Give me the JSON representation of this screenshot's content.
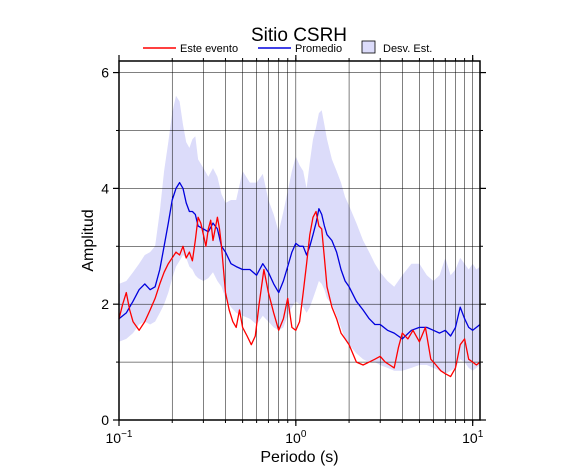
{
  "chart_data": {
    "type": "line",
    "title": "Sitio CSRH",
    "xlabel": "Periodo (s)",
    "ylabel": "Amplitud",
    "xscale": "log",
    "xlim": [
      0.1,
      11
    ],
    "ylim": [
      0,
      6.2
    ],
    "x_ticks": [
      {
        "value": 0.1,
        "base": "10",
        "exp": "−1"
      },
      {
        "value": 1,
        "base": "10",
        "exp": "0"
      },
      {
        "value": 10,
        "base": "10",
        "exp": "1"
      }
    ],
    "x_tick_labels_plain": [
      "10⁻¹",
      "10⁰",
      "10¹"
    ],
    "y_ticks": [
      0,
      2,
      4,
      6
    ],
    "y_ticks_minor": [
      1,
      3,
      5
    ],
    "grid": true,
    "legend": {
      "placement": "top",
      "entries": [
        {
          "label": "Este evento",
          "color": "#ff0000",
          "kind": "line"
        },
        {
          "label": "Promedio",
          "color": "#0000dd",
          "kind": "line"
        },
        {
          "label": "Desv. Est.",
          "color": "#dcdcfa",
          "kind": "band"
        }
      ]
    },
    "series": [
      {
        "name": "Este evento",
        "color": "#ff0000",
        "x": [
          0.1,
          0.105,
          0.11,
          0.115,
          0.12,
          0.13,
          0.14,
          0.15,
          0.16,
          0.17,
          0.18,
          0.19,
          0.2,
          0.21,
          0.22,
          0.23,
          0.24,
          0.25,
          0.26,
          0.27,
          0.28,
          0.29,
          0.3,
          0.31,
          0.32,
          0.33,
          0.34,
          0.35,
          0.36,
          0.37,
          0.38,
          0.39,
          0.4,
          0.42,
          0.44,
          0.46,
          0.48,
          0.5,
          0.53,
          0.56,
          0.59,
          0.62,
          0.66,
          0.7,
          0.75,
          0.8,
          0.85,
          0.9,
          0.95,
          1.0,
          1.05,
          1.1,
          1.15,
          1.2,
          1.25,
          1.3,
          1.35,
          1.4,
          1.45,
          1.5,
          1.6,
          1.7,
          1.8,
          1.9,
          2.0,
          2.2,
          2.4,
          2.6,
          2.8,
          3.0,
          3.2,
          3.4,
          3.6,
          3.8,
          4.0,
          4.3,
          4.6,
          5.0,
          5.4,
          5.8,
          6.2,
          6.6,
          7.0,
          7.5,
          8.0,
          8.5,
          9.0,
          9.5,
          10.0,
          10.5,
          11.0
        ],
        "y": [
          1.75,
          2.0,
          2.2,
          1.9,
          1.7,
          1.55,
          1.7,
          1.9,
          2.1,
          2.35,
          2.55,
          2.7,
          2.8,
          2.9,
          2.85,
          3.0,
          2.8,
          2.9,
          2.75,
          3.1,
          3.5,
          3.4,
          3.2,
          3.0,
          3.3,
          3.45,
          3.1,
          3.3,
          3.5,
          3.3,
          3.0,
          2.6,
          2.2,
          1.9,
          1.7,
          1.6,
          1.9,
          1.6,
          1.45,
          1.3,
          1.45,
          2.0,
          2.6,
          2.2,
          1.85,
          1.55,
          1.75,
          2.1,
          1.6,
          1.55,
          1.7,
          2.2,
          2.7,
          3.2,
          3.5,
          3.6,
          3.35,
          3.3,
          2.8,
          2.3,
          1.95,
          1.75,
          1.5,
          1.4,
          1.3,
          1.0,
          0.95,
          1.0,
          1.05,
          1.1,
          1.0,
          0.95,
          0.9,
          1.25,
          1.5,
          1.4,
          1.55,
          1.35,
          1.6,
          1.05,
          0.95,
          0.85,
          0.8,
          0.75,
          0.9,
          1.3,
          1.4,
          1.05,
          1.0,
          0.95,
          1.0
        ]
      },
      {
        "name": "Promedio",
        "color": "#0000dd",
        "x": [
          0.1,
          0.11,
          0.12,
          0.13,
          0.14,
          0.15,
          0.16,
          0.17,
          0.18,
          0.19,
          0.2,
          0.21,
          0.22,
          0.23,
          0.24,
          0.25,
          0.26,
          0.27,
          0.28,
          0.3,
          0.32,
          0.34,
          0.36,
          0.38,
          0.4,
          0.43,
          0.46,
          0.5,
          0.55,
          0.6,
          0.65,
          0.7,
          0.75,
          0.8,
          0.85,
          0.9,
          0.95,
          1.0,
          1.05,
          1.1,
          1.15,
          1.2,
          1.25,
          1.3,
          1.35,
          1.4,
          1.45,
          1.5,
          1.6,
          1.7,
          1.8,
          1.9,
          2.0,
          2.2,
          2.4,
          2.6,
          2.8,
          3.0,
          3.3,
          3.6,
          4.0,
          4.5,
          5.0,
          5.5,
          6.0,
          6.5,
          7.0,
          7.5,
          8.0,
          8.5,
          9.0,
          9.5,
          10.0,
          10.5,
          11.0
        ],
        "y": [
          1.75,
          1.85,
          2.05,
          2.25,
          2.35,
          2.25,
          2.3,
          2.6,
          3.0,
          3.4,
          3.8,
          4.0,
          4.1,
          4.0,
          3.75,
          3.6,
          3.6,
          3.55,
          3.35,
          3.3,
          3.25,
          3.4,
          3.3,
          3.0,
          2.9,
          2.7,
          2.65,
          2.6,
          2.6,
          2.5,
          2.7,
          2.55,
          2.35,
          2.2,
          2.4,
          2.65,
          2.9,
          3.05,
          3.0,
          3.0,
          2.85,
          3.0,
          3.2,
          3.4,
          3.65,
          3.55,
          3.35,
          3.2,
          3.1,
          2.9,
          2.6,
          2.4,
          2.3,
          2.05,
          1.9,
          1.75,
          1.65,
          1.65,
          1.55,
          1.5,
          1.4,
          1.55,
          1.6,
          1.6,
          1.55,
          1.5,
          1.55,
          1.45,
          1.6,
          1.95,
          1.75,
          1.6,
          1.55,
          1.6,
          1.65
        ]
      }
    ],
    "band": {
      "name": "Desv. Est.",
      "color": "#dcdcfa",
      "x": [
        0.1,
        0.11,
        0.12,
        0.13,
        0.14,
        0.15,
        0.16,
        0.17,
        0.18,
        0.19,
        0.2,
        0.21,
        0.22,
        0.23,
        0.24,
        0.25,
        0.26,
        0.27,
        0.28,
        0.3,
        0.32,
        0.34,
        0.36,
        0.38,
        0.4,
        0.43,
        0.46,
        0.5,
        0.55,
        0.6,
        0.65,
        0.7,
        0.75,
        0.8,
        0.85,
        0.9,
        0.95,
        1.0,
        1.05,
        1.1,
        1.15,
        1.2,
        1.25,
        1.3,
        1.35,
        1.4,
        1.45,
        1.5,
        1.6,
        1.7,
        1.8,
        1.9,
        2.0,
        2.2,
        2.4,
        2.6,
        2.8,
        3.0,
        3.3,
        3.6,
        4.0,
        4.5,
        5.0,
        5.5,
        6.0,
        6.5,
        7.0,
        7.5,
        8.0,
        8.5,
        9.0,
        9.5,
        10.0,
        10.5,
        11.0
      ],
      "upper": [
        2.35,
        2.4,
        2.55,
        2.7,
        2.85,
        2.9,
        3.0,
        3.6,
        4.3,
        4.8,
        5.3,
        5.6,
        5.5,
        5.1,
        4.8,
        4.7,
        4.85,
        4.9,
        4.5,
        4.35,
        4.2,
        4.35,
        4.2,
        3.9,
        3.75,
        3.8,
        3.8,
        4.3,
        4.1,
        4.1,
        4.25,
        3.8,
        3.55,
        3.25,
        3.6,
        3.95,
        4.3,
        4.55,
        4.4,
        4.3,
        4.0,
        4.45,
        4.85,
        5.05,
        5.3,
        5.35,
        5.1,
        4.85,
        4.5,
        4.3,
        4.1,
        3.85,
        3.7,
        3.4,
        3.1,
        2.9,
        2.7,
        2.55,
        2.4,
        2.3,
        2.5,
        2.7,
        2.7,
        2.5,
        2.4,
        2.5,
        2.8,
        2.5,
        2.6,
        2.8,
        2.7,
        2.6,
        2.7,
        2.6,
        2.65
      ],
      "lower": [
        1.35,
        1.4,
        1.5,
        1.65,
        1.7,
        1.65,
        1.7,
        1.85,
        2.0,
        2.2,
        2.45,
        2.65,
        2.75,
        2.85,
        2.8,
        2.65,
        2.6,
        2.5,
        2.45,
        2.4,
        2.45,
        2.55,
        2.4,
        2.3,
        2.1,
        1.95,
        1.85,
        1.8,
        1.75,
        1.65,
        1.8,
        1.7,
        1.6,
        1.55,
        1.6,
        1.8,
        1.95,
        2.05,
        2.0,
        1.95,
        1.85,
        1.95,
        2.1,
        2.25,
        2.4,
        2.35,
        2.25,
        2.1,
        2.0,
        1.8,
        1.6,
        1.4,
        1.3,
        1.15,
        1.05,
        1.0,
        1.0,
        0.95,
        0.9,
        0.85,
        0.85,
        0.9,
        0.95,
        0.95,
        0.9,
        0.85,
        0.8,
        0.85,
        0.9,
        1.05,
        1.0,
        0.9,
        0.85,
        0.9,
        0.95
      ]
    }
  }
}
